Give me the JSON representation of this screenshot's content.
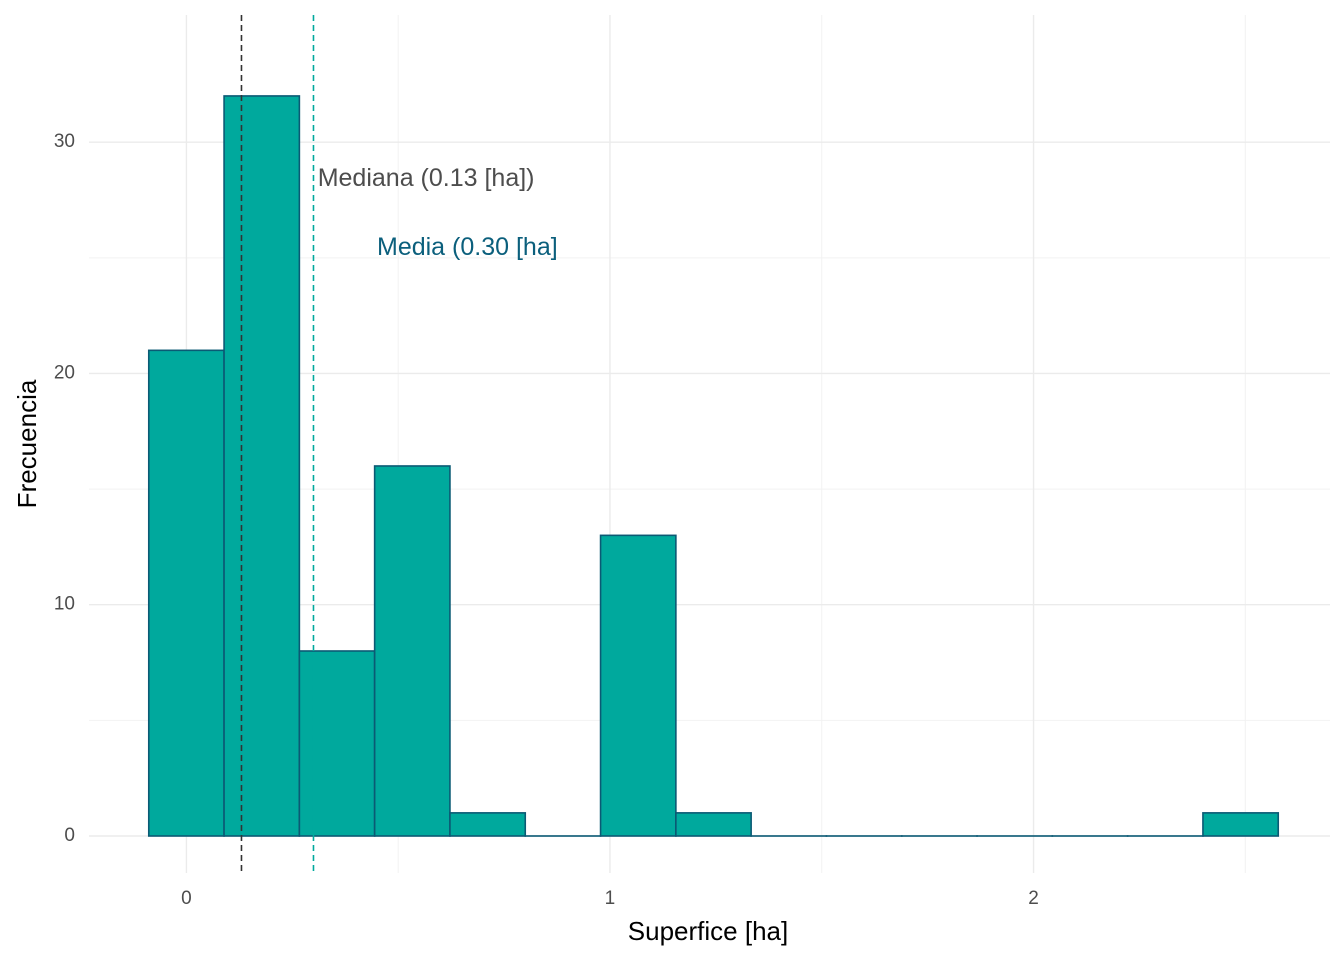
{
  "chart_data": {
    "type": "bar",
    "subtype": "histogram",
    "xlabel": "Superfice [ha]",
    "ylabel": "Frecuencia",
    "xlim": [
      -0.23,
      2.7
    ],
    "ylim": [
      -1.6,
      35.5
    ],
    "x_ticks": [
      0,
      1,
      2
    ],
    "x_minor_ticks": [
      0.5,
      1.5,
      2.5
    ],
    "y_ticks": [
      0,
      10,
      20,
      30
    ],
    "y_minor_ticks": [
      5,
      15,
      25
    ],
    "grid": true,
    "bins": [
      {
        "x0": -0.0889,
        "x1": 0.0889,
        "count": 21
      },
      {
        "x0": 0.0889,
        "x1": 0.2667,
        "count": 32
      },
      {
        "x0": 0.2667,
        "x1": 0.4444,
        "count": 8
      },
      {
        "x0": 0.4444,
        "x1": 0.6222,
        "count": 16
      },
      {
        "x0": 0.6222,
        "x1": 0.8,
        "count": 1
      },
      {
        "x0": 0.8,
        "x1": 0.9778,
        "count": 0
      },
      {
        "x0": 0.9778,
        "x1": 1.1556,
        "count": 13
      },
      {
        "x0": 1.1556,
        "x1": 1.3333,
        "count": 1
      },
      {
        "x0": 1.3333,
        "x1": 1.5111,
        "count": 0
      },
      {
        "x0": 1.5111,
        "x1": 1.6889,
        "count": 0
      },
      {
        "x0": 1.6889,
        "x1": 1.8667,
        "count": 0
      },
      {
        "x0": 1.8667,
        "x1": 2.0444,
        "count": 0
      },
      {
        "x0": 2.0444,
        "x1": 2.2222,
        "count": 0
      },
      {
        "x0": 2.2222,
        "x1": 2.4,
        "count": 0
      },
      {
        "x0": 2.4,
        "x1": 2.5778,
        "count": 1
      }
    ],
    "reference_lines": [
      {
        "name": "mediana",
        "x": 0.13,
        "color": "#333333"
      },
      {
        "name": "media",
        "x": 0.3,
        "color": "#00a99d"
      }
    ],
    "annotations": [
      {
        "text": "Mediana (0.13 [ha])",
        "x": 0.31,
        "y": 28.4,
        "color": "#4d4d4d"
      },
      {
        "text": "Media (0.30 [ha]",
        "x": 0.45,
        "y": 25.4,
        "color": "#0b5f7c"
      }
    ],
    "colors": {
      "bar_fill": "#00a99d",
      "bar_stroke": "#0b5a74"
    }
  }
}
